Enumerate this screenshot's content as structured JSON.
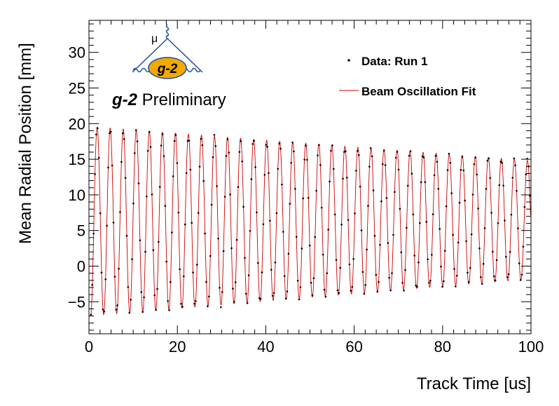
{
  "logo": {
    "particle_label": "μ",
    "text": "g-2"
  },
  "preliminary": {
    "bold": "g-2",
    "rest": " Preliminary"
  },
  "legend": {
    "data_label": "Data: Run 1",
    "fit_label": "Beam Oscillation Fit"
  },
  "colors": {
    "data": "#000000",
    "fit": "#cc0000",
    "logo_lines": "#1f4e99",
    "logo_fill": "#f2a900"
  },
  "chart_data": {
    "type": "scatter",
    "xlabel": "Track Time [us]",
    "ylabel": "Mean Radial Position [mm]",
    "xlim": [
      0,
      100
    ],
    "ylim": [
      -9.5,
      34.5
    ],
    "x_ticks": [
      0,
      20,
      40,
      60,
      80,
      100
    ],
    "y_ticks": [
      -5,
      0,
      5,
      10,
      15,
      20,
      25,
      30
    ],
    "grid": false,
    "legend_position": "top-right",
    "series": [
      {
        "name": "Data: Run 1",
        "kind": "points"
      },
      {
        "name": "Beam Oscillation Fit",
        "kind": "line"
      }
    ],
    "model": {
      "description_visible": "oscillating mean radial position with slowly decaying amplitude",
      "period_us": 2.95,
      "first_peak_us": 4.8,
      "offset_start_mm": 6.3,
      "offset_end_mm": 6.5,
      "amplitude_start_mm": 13.3,
      "amplitude_end_mm": 8.3,
      "sample_step_us": 0.3
    }
  }
}
